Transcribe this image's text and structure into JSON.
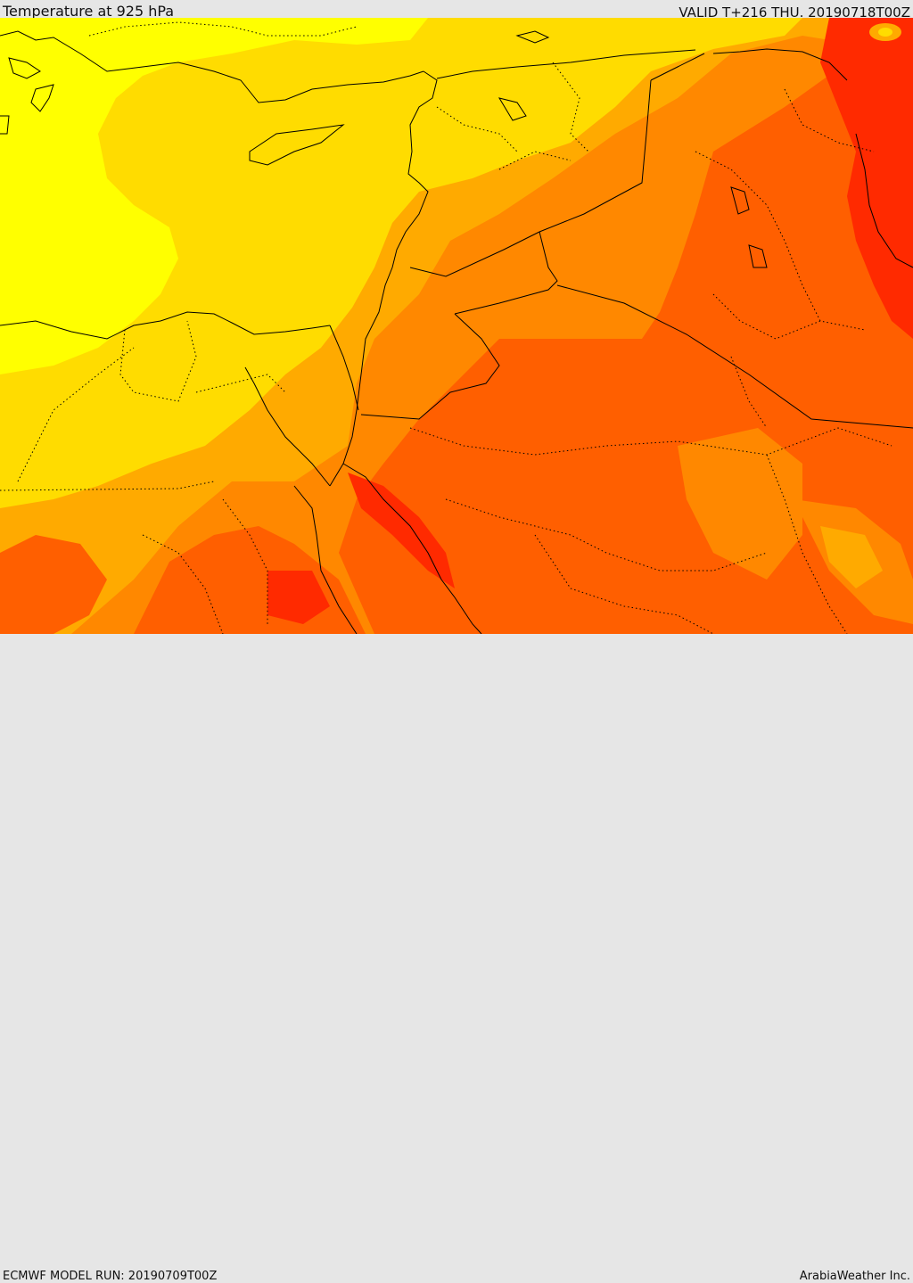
{
  "header": {
    "title": "Temperature at 925 hPa",
    "valid": "VALID T+216 THU. 20190718T00Z"
  },
  "footer": {
    "model_run": "ECMWF MODEL RUN: 20190709T00Z",
    "credit": "ArabiaWeather Inc."
  },
  "colors": {
    "band_1": "#ffff00",
    "band_2": "#ffdc00",
    "band_3": "#ffaa00",
    "band_4": "#ff8800",
    "band_5": "#ff5f00",
    "band_6": "#ff2a00",
    "borders": "#000000"
  }
}
